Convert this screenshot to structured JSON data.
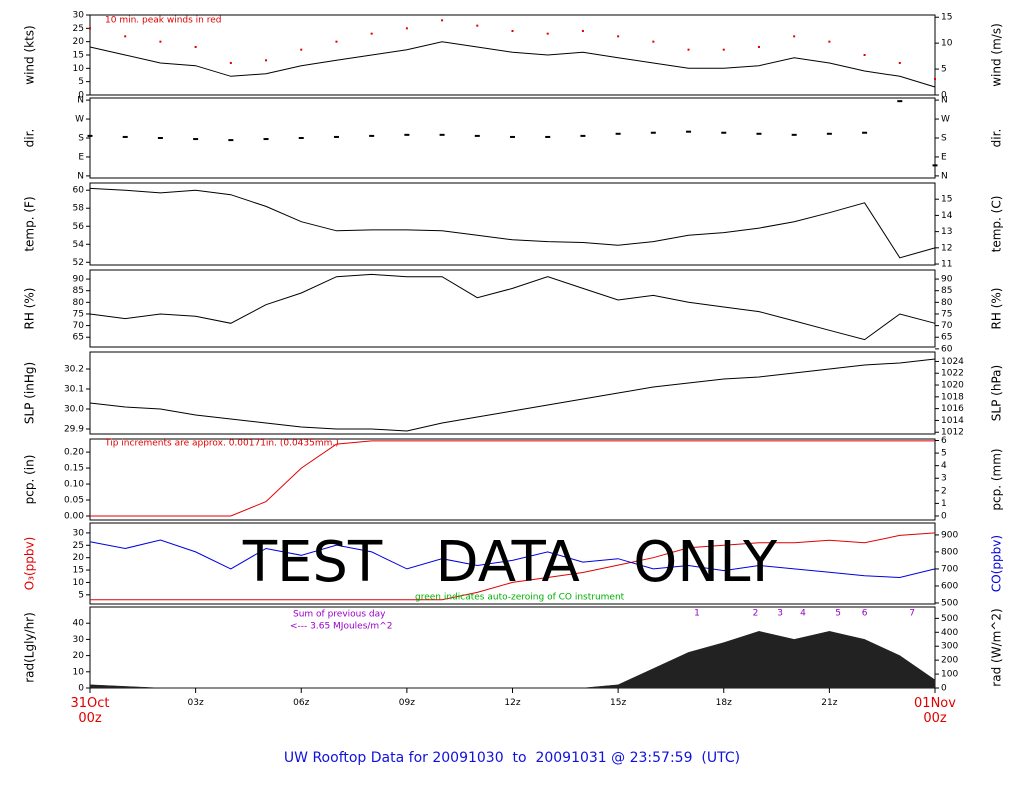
{
  "chart_data": [
    {
      "type": "line",
      "ylabel": "wind (kts)",
      "y2label": "wind (m/s)",
      "xlim": [
        0,
        24
      ],
      "ylim": [
        0,
        30
      ],
      "yticks": [
        0,
        5,
        10,
        15,
        20,
        25,
        30
      ],
      "y2lim": [
        0,
        15.43
      ],
      "y2ticks": [
        0,
        5,
        10,
        15
      ],
      "x": [
        0,
        1,
        2,
        3,
        4,
        5,
        6,
        7,
        8,
        9,
        10,
        11,
        12,
        13,
        14,
        15,
        16,
        17,
        18,
        19,
        20,
        21,
        22,
        23,
        24
      ],
      "series": [
        {
          "color": "#000000",
          "values": [
            18,
            15,
            12,
            11,
            7,
            8,
            11,
            13,
            15,
            17,
            20,
            18,
            16,
            15,
            16,
            14,
            12,
            10,
            10,
            11,
            14,
            12,
            9,
            7,
            3
          ]
        },
        {
          "color": "#e00000",
          "marker": "dot",
          "values": [
            25,
            22,
            20,
            18,
            12,
            13,
            17,
            20,
            23,
            25,
            28,
            26,
            24,
            23,
            24,
            22,
            20,
            17,
            17,
            18,
            22,
            20,
            15,
            12,
            6
          ]
        }
      ],
      "annotations": [
        {
          "text": "10 min. peak winds in red",
          "color": "#e00000"
        }
      ]
    },
    {
      "type": "scatter",
      "ylabel": "dir.",
      "y2label": "dir.",
      "xlim": [
        0,
        24
      ],
      "ylim": [
        -10,
        370
      ],
      "yticks": [
        {
          "value": 0,
          "label": "N"
        },
        {
          "value": 90,
          "label": "E"
        },
        {
          "value": 180,
          "label": "S"
        },
        {
          "value": 270,
          "label": "W"
        },
        {
          "value": 360,
          "label": "N"
        }
      ],
      "y2lim": [
        -10,
        370
      ],
      "y2ticks": [
        {
          "value": 0,
          "label": "N"
        },
        {
          "value": 90,
          "label": "E"
        },
        {
          "value": 180,
          "label": "S"
        },
        {
          "value": 270,
          "label": "W"
        },
        {
          "value": 360,
          "label": "N"
        }
      ],
      "x": [
        0,
        1,
        2,
        3,
        4,
        5,
        6,
        7,
        8,
        9,
        10,
        11,
        12,
        13,
        14,
        15,
        16,
        17,
        18,
        19,
        20,
        21,
        22,
        23,
        24
      ],
      "series": [
        {
          "color": "#000000",
          "values": [
            190,
            185,
            180,
            175,
            170,
            175,
            180,
            185,
            190,
            195,
            195,
            190,
            185,
            185,
            190,
            200,
            205,
            210,
            205,
            200,
            195,
            200,
            205,
            355,
            50
          ]
        }
      ]
    },
    {
      "type": "line",
      "ylabel": "temp. (F)",
      "y2label": "temp. (C)",
      "xlim": [
        0,
        24
      ],
      "ylim": [
        51.7,
        60.8
      ],
      "yticks": [
        52,
        54,
        56,
        58,
        60
      ],
      "y2lim": [
        10.94,
        16.0
      ],
      "y2ticks": [
        11,
        12,
        13,
        14,
        15
      ],
      "x": [
        0,
        1,
        2,
        3,
        4,
        5,
        6,
        7,
        8,
        9,
        10,
        11,
        12,
        13,
        14,
        15,
        16,
        17,
        18,
        19,
        20,
        21,
        22,
        23,
        24
      ],
      "series": [
        {
          "color": "#000000",
          "values": [
            60.2,
            60.0,
            59.7,
            60.0,
            59.5,
            58.2,
            56.5,
            55.5,
            55.6,
            55.6,
            55.5,
            55.0,
            54.5,
            54.3,
            54.2,
            53.9,
            54.3,
            55.0,
            55.3,
            55.8,
            56.5,
            57.5,
            58.6,
            52.5,
            53.6
          ]
        }
      ]
    },
    {
      "type": "line",
      "ylabel": "RH (%)",
      "y2label": "RH (%)",
      "xlim": [
        0,
        24
      ],
      "ylim": [
        60.8,
        93.9
      ],
      "yticks": [
        65,
        70,
        75,
        80,
        85,
        90
      ],
      "y2lim": [
        60.8,
        93.9
      ],
      "y2ticks": [
        60,
        65,
        70,
        75,
        80,
        85,
        90
      ],
      "x": [
        0,
        1,
        2,
        3,
        4,
        5,
        6,
        7,
        8,
        9,
        10,
        11,
        12,
        13,
        14,
        15,
        16,
        17,
        18,
        19,
        20,
        21,
        22,
        23,
        24
      ],
      "series": [
        {
          "color": "#000000",
          "values": [
            75,
            73,
            75,
            74,
            71,
            79,
            84,
            91,
            92,
            91,
            91,
            82,
            86,
            91,
            86,
            81,
            83,
            80,
            78,
            76,
            72,
            68,
            64,
            75,
            71
          ]
        }
      ]
    },
    {
      "type": "line",
      "ylabel": "SLP (inHg)",
      "y2label": "SLP (hPa)",
      "xlim": [
        0,
        24
      ],
      "ylim": [
        29.875,
        30.285
      ],
      "yticks": [
        29.9,
        {
          "value": 30.0,
          "label": "30.0"
        },
        30.1,
        30.2
      ],
      "y2lim": [
        1011.7,
        1025.6
      ],
      "y2ticks": [
        1012,
        1014,
        1016,
        1018,
        1020,
        1022,
        1024
      ],
      "x": [
        0,
        1,
        2,
        3,
        4,
        5,
        6,
        7,
        8,
        9,
        10,
        11,
        12,
        13,
        14,
        15,
        16,
        17,
        18,
        19,
        20,
        21,
        22,
        23,
        24
      ],
      "series": [
        {
          "color": "#000000",
          "values": [
            30.03,
            30.01,
            30.0,
            29.97,
            29.95,
            29.93,
            29.91,
            29.9,
            29.9,
            29.89,
            29.93,
            29.96,
            29.99,
            30.02,
            30.05,
            30.08,
            30.11,
            30.13,
            30.15,
            30.16,
            30.18,
            30.2,
            30.22,
            30.23,
            30.25
          ]
        }
      ]
    },
    {
      "type": "line",
      "ylabel": "pcp. (in)",
      "y2label": "pcp. (mm)",
      "xlim": [
        0,
        24
      ],
      "ylim": [
        -0.0125,
        0.241
      ],
      "yticks": [
        {
          "value": 0,
          "label": "0.00"
        },
        0.05,
        {
          "value": 0.1,
          "label": "0.10"
        },
        0.15,
        {
          "value": 0.2,
          "label": "0.20"
        }
      ],
      "y2lim": [
        -0.32,
        6.12
      ],
      "y2ticks": [
        0,
        1,
        2,
        3,
        4,
        5,
        6
      ],
      "x": [
        0,
        1,
        2,
        3,
        4,
        5,
        6,
        7,
        8,
        9,
        10,
        11,
        12,
        13,
        14,
        15,
        16,
        17,
        18,
        19,
        20,
        21,
        22,
        23,
        24
      ],
      "series": [
        {
          "color": "#e00000",
          "values": [
            0,
            0,
            0,
            0,
            0,
            0.045,
            0.15,
            0.225,
            0.235,
            0.235,
            0.235,
            0.235,
            0.235,
            0.235,
            0.235,
            0.235,
            0.235,
            0.235,
            0.235,
            0.235,
            0.235,
            0.235,
            0.235,
            0.235,
            0.235
          ]
        }
      ],
      "annotations": [
        {
          "text": "Tip increments are approx. 0.00171in. (0.0435mm.)",
          "color": "#e00000"
        }
      ]
    },
    {
      "type": "line",
      "ylabel": "O₃(ppbv)",
      "y2label": "CO(ppbv)",
      "ylabel_color": "#e00000",
      "y2label_color": "#0000e0",
      "xlim": [
        0,
        24
      ],
      "ylim": [
        1.3,
        34
      ],
      "yticks": [
        5,
        10,
        15,
        20,
        25,
        30
      ],
      "y2lim": [
        494,
        970
      ],
      "y2ticks": [
        500,
        600,
        700,
        800,
        900
      ],
      "x": [
        0,
        1,
        2,
        3,
        4,
        5,
        6,
        7,
        8,
        9,
        10,
        11,
        12,
        13,
        14,
        15,
        16,
        17,
        18,
        19,
        20,
        21,
        22,
        23,
        24
      ],
      "series": [
        {
          "color": "#e00000",
          "values": [
            3,
            3,
            3,
            3,
            3,
            3,
            3,
            3,
            3,
            3,
            3,
            6,
            10,
            12,
            14,
            17,
            20,
            24,
            25,
            26,
            26,
            27,
            26,
            29,
            30
          ]
        },
        {
          "color": "#0000e0",
          "axis": "y2",
          "values": [
            860,
            820,
            870,
            800,
            700,
            820,
            780,
            840,
            800,
            700,
            760,
            720,
            750,
            800,
            740,
            760,
            700,
            720,
            690,
            720,
            700,
            680,
            660,
            650,
            700
          ]
        }
      ],
      "annotations": [
        {
          "text": "green indicates auto-zeroing of CO instrument",
          "color": "#00b000"
        }
      ]
    },
    {
      "type": "area",
      "ylabel": "rad(Lgly/hr)",
      "y2label": "rad (W/m^2)",
      "xlim": [
        0,
        24
      ],
      "ylim": [
        0,
        50
      ],
      "yticks": [
        0,
        10,
        20,
        30,
        40
      ],
      "y2lim": [
        0,
        581.5
      ],
      "y2ticks": [
        0,
        100,
        200,
        300,
        400,
        500
      ],
      "x": [
        0,
        1,
        2,
        3,
        4,
        5,
        6,
        7,
        8,
        9,
        10,
        11,
        12,
        13,
        14,
        15,
        16,
        17,
        18,
        19,
        20,
        21,
        22,
        23,
        24
      ],
      "series": [
        {
          "color": "#222222",
          "values": [
            2,
            1,
            0,
            0,
            0,
            0,
            0,
            0,
            0,
            0,
            0,
            0,
            0,
            0,
            0,
            2,
            12,
            22,
            28,
            35,
            30,
            35,
            30,
            20,
            5
          ]
        }
      ],
      "annotations": [
        {
          "text": "Sum of previous day",
          "color": "#9900cc"
        },
        {
          "text": "<--- 3.65 MJoules/m^2",
          "color": "#9900cc"
        }
      ],
      "day_markers": {
        "color": "#9900cc",
        "labels": [
          "1",
          "2",
          "3",
          "4",
          "5",
          "6",
          "7"
        ],
        "x": [
          17.24,
          18.9,
          19.6,
          20.25,
          21.25,
          22.0,
          23.35
        ]
      },
      "xticks": [
        {
          "value": 0,
          "label": "31Oct\n00z",
          "color": "#e00000"
        },
        {
          "value": 3,
          "label": "03z"
        },
        {
          "value": 6,
          "label": "06z"
        },
        {
          "value": 9,
          "label": "09z"
        },
        {
          "value": 12,
          "label": "12z"
        },
        {
          "value": 15,
          "label": "15z"
        },
        {
          "value": 18,
          "label": "18z"
        },
        {
          "value": 21,
          "label": "21z"
        },
        {
          "value": 24,
          "label": "01Nov\n00z",
          "color": "#e00000"
        }
      ]
    }
  ],
  "watermark": "TEST   DATA   ONLY",
  "footer": "UW Rooftop Data for 20091030  to  20091031 @ 23:57:59  (UTC)"
}
